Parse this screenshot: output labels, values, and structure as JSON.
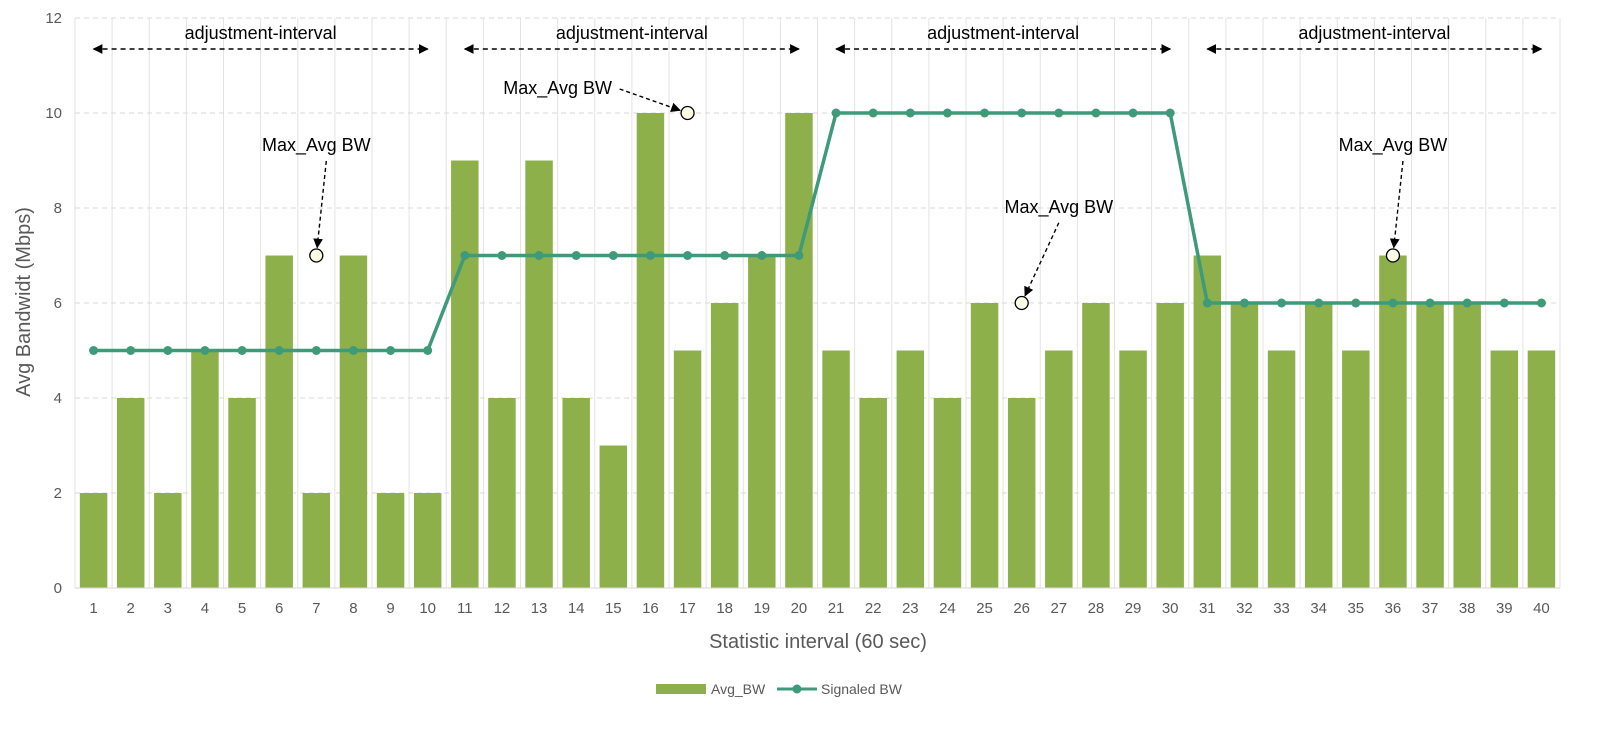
{
  "chart_data": {
    "type": "bar",
    "xlabel": "Statistic interval (60 sec)",
    "ylabel": "Avg Bandwidt (Mbps)",
    "ylim": [
      0,
      12
    ],
    "yticks": [
      0,
      2,
      4,
      6,
      8,
      10,
      12
    ],
    "grid": "horizontal dashed, vertical lines",
    "legend_position": "bottom",
    "categories": [
      "1",
      "2",
      "3",
      "4",
      "5",
      "6",
      "7",
      "8",
      "9",
      "10",
      "11",
      "12",
      "13",
      "14",
      "15",
      "16",
      "17",
      "18",
      "19",
      "20",
      "21",
      "22",
      "23",
      "24",
      "25",
      "26",
      "27",
      "28",
      "29",
      "30",
      "31",
      "32",
      "33",
      "34",
      "35",
      "36",
      "37",
      "38",
      "39",
      "40"
    ],
    "series": [
      {
        "name": "Avg_BW",
        "type": "bar",
        "color": "#8db04a",
        "values": [
          2,
          4,
          2,
          5,
          4,
          7,
          2,
          7,
          2,
          2,
          9,
          4,
          9,
          4,
          3,
          10,
          5,
          6,
          7,
          10,
          5,
          4,
          5,
          4,
          6,
          4,
          5,
          6,
          5,
          6,
          7,
          6,
          5,
          6,
          5,
          7,
          6,
          6,
          5,
          5
        ]
      },
      {
        "name": "Signaled BW",
        "type": "line",
        "color": "#3f9a7a",
        "values": [
          5,
          5,
          5,
          5,
          5,
          5,
          5,
          5,
          5,
          5,
          7,
          7,
          7,
          7,
          7,
          7,
          7,
          7,
          7,
          7,
          10,
          10,
          10,
          10,
          10,
          10,
          10,
          10,
          10,
          10,
          6,
          6,
          6,
          6,
          6,
          6,
          6,
          6,
          6,
          6
        ]
      }
    ],
    "interval_spans": [
      {
        "label": "adjustment-interval",
        "from": 1,
        "to": 10
      },
      {
        "label": "adjustment-interval",
        "from": 11,
        "to": 20
      },
      {
        "label": "adjustment-interval",
        "from": 21,
        "to": 30
      },
      {
        "label": "adjustment-interval",
        "from": 31,
        "to": 40
      }
    ],
    "annotations": [
      {
        "label": "Max_Avg BW",
        "point_x": 7,
        "point_y": 7,
        "text_x": 7,
        "text_y": 9.2,
        "anchor": "middle"
      },
      {
        "label": "Max_Avg BW",
        "point_x": 17,
        "point_y": 10,
        "text_x": 13.5,
        "text_y": 10.4,
        "anchor": "middle"
      },
      {
        "label": "Max_Avg BW",
        "point_x": 26,
        "point_y": 6,
        "text_x": 27,
        "text_y": 7.9,
        "anchor": "middle"
      },
      {
        "label": "Max_Avg BW",
        "point_x": 36,
        "point_y": 7,
        "text_x": 36,
        "text_y": 9.2,
        "anchor": "middle"
      }
    ]
  }
}
